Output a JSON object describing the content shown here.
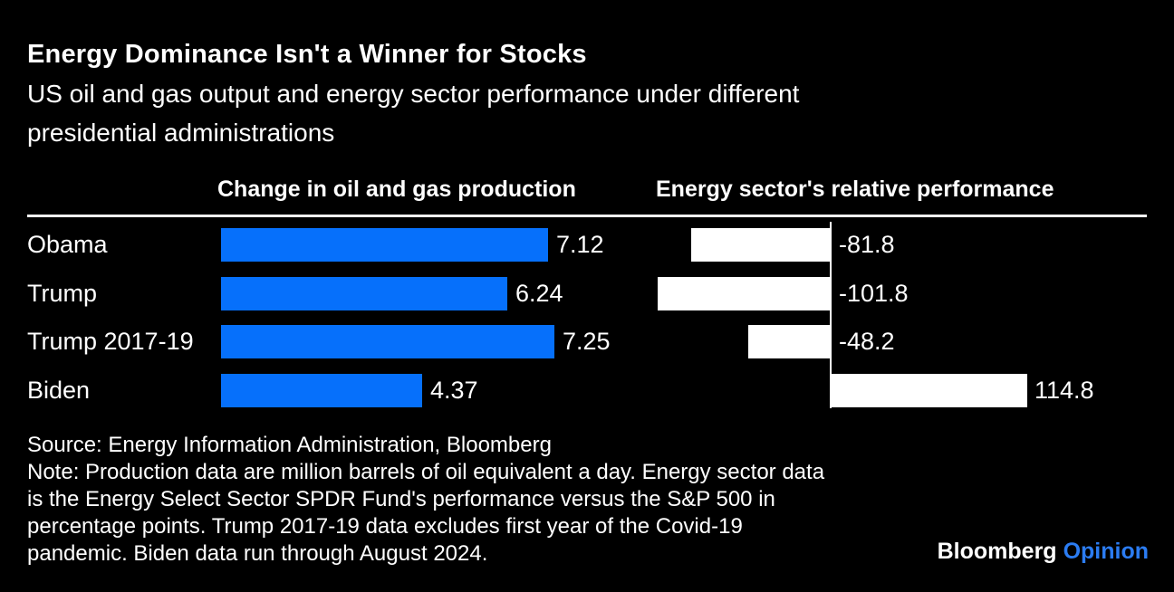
{
  "header": {
    "title": "Energy Dominance Isn't a Winner for Stocks",
    "subtitle_lines": [
      "US oil and gas output and energy sector performance under different",
      "presidential administrations"
    ]
  },
  "columns": {
    "left_header": "Change in oil and gas production",
    "right_header": "Energy sector's relative performance"
  },
  "chart_data": {
    "type": "bar",
    "orientation": "horizontal",
    "categories": [
      "Obama",
      "Trump",
      "Trump 2017-19",
      "Biden"
    ],
    "series": [
      {
        "name": "Change in oil and gas production",
        "unit": "million barrels of oil equivalent a day",
        "values": [
          7.12,
          6.24,
          7.25,
          4.37
        ],
        "value_labels": [
          "7.12",
          "6.24",
          "7.25",
          "4.37"
        ],
        "color": "#0670fb"
      },
      {
        "name": "Energy sector's relative performance",
        "unit": "percentage points vs S&P 500",
        "values": [
          -81.8,
          -101.8,
          -48.2,
          114.8
        ],
        "value_labels": [
          "-81.8",
          "-101.8",
          "-48.2",
          "114.8"
        ],
        "color": "#ffffff"
      }
    ],
    "legend_position": "none",
    "grid": false
  },
  "footer": {
    "lines": [
      "Source: Energy Information Administration, Bloomberg",
      "Note: Production data are million barrels of oil equivalent a day. Energy sector data",
      "is the Energy Select Sector SPDR Fund's performance versus the S&P 500 in",
      "percentage points. Trump 2017-19 data excludes first year of the Covid-19",
      "pandemic. Biden data run through August 2024."
    ]
  },
  "logo": {
    "bloomberg": "Bloomberg",
    "opinion": "Opinion"
  },
  "colors": {
    "background": "#000000",
    "bar_blue": "#0670fb",
    "bar_white": "#ffffff",
    "text": "#ffffff",
    "opinion_blue": "#2b7cf2"
  }
}
